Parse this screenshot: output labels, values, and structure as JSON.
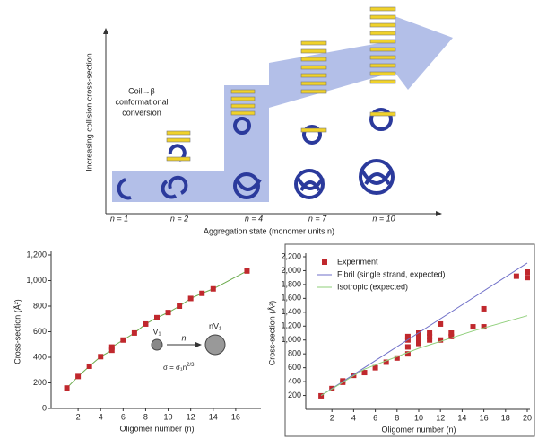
{
  "diagram": {
    "y_label": "Increasing collision cross-section",
    "note_line1": "Coil→β",
    "note_line2": "conformational",
    "note_line3": "conversion",
    "states": [
      "n = 1",
      "n = 2",
      "n = 4",
      "n = 7",
      "n = 10"
    ],
    "x_label": "Aggregation state (monomer units n)"
  },
  "chart_data": [
    {
      "type": "line",
      "x_label": "Oligomer number (n)",
      "y_label": "Cross-section (Å²)",
      "xlim": [
        0,
        18
      ],
      "xticks": [
        2,
        4,
        6,
        8,
        10,
        12,
        14,
        16
      ],
      "ylim": [
        0,
        1200
      ],
      "yticks": [
        0,
        200,
        400,
        600,
        800,
        {
          "value": 1000,
          "label": "1,000"
        },
        {
          "value": 1200,
          "label": "1,200"
        }
      ],
      "series": [
        {
          "color": "#c0282d",
          "line_color": "#6aaa4b",
          "mode": "lines+markers",
          "x": [
            1,
            2,
            3,
            4,
            5,
            5,
            6,
            7,
            8,
            9,
            10,
            11,
            12,
            13,
            14,
            17
          ],
          "values": [
            160,
            250,
            330,
            405,
            455,
            480,
            535,
            590,
            660,
            710,
            750,
            800,
            860,
            900,
            935,
            1075
          ]
        }
      ],
      "annotations": {
        "v1": "V₁",
        "arrow": "n",
        "nv1": "nV₁",
        "formula": "σ = σ₁n",
        "formula_exp": "2/3"
      }
    },
    {
      "type": "scatter",
      "x_label": "Oligomer number (n)",
      "y_label": "Cross-section (Å²)",
      "xlim": [
        0,
        20
      ],
      "xticks": [
        2,
        4,
        6,
        8,
        10,
        12,
        14,
        16,
        18,
        20
      ],
      "ylim": [
        0,
        2200
      ],
      "yticks": [
        200,
        400,
        600,
        800,
        {
          "value": 1000,
          "label": "1,000"
        },
        {
          "value": 1200,
          "label": "1,200"
        },
        {
          "value": 1400,
          "label": "1,400"
        },
        {
          "value": 1600,
          "label": "1,600"
        },
        {
          "value": 1800,
          "label": "1,800"
        },
        {
          "value": 2000,
          "label": "2,000"
        },
        {
          "value": 2200,
          "label": "2,200"
        }
      ],
      "legend": "top-left",
      "frame": true,
      "series": [
        {
          "name": "Experiment",
          "color": "#c0282d",
          "mode": "markers",
          "x": [
            1,
            2,
            3,
            3,
            4,
            5,
            6,
            7,
            8,
            9,
            9,
            9,
            9,
            10,
            10,
            10,
            10,
            11,
            11,
            11,
            12,
            12,
            13,
            13,
            15,
            16,
            16,
            19,
            20,
            20
          ],
          "values": [
            195,
            300,
            390,
            410,
            490,
            530,
            600,
            680,
            740,
            800,
            900,
            1000,
            1050,
            950,
            1000,
            1050,
            1100,
            1000,
            1050,
            1100,
            1230,
            1000,
            1050,
            1100,
            1190,
            1190,
            1450,
            1920,
            1900,
            1980
          ]
        },
        {
          "name": "Fibril (single strand, expected)",
          "color": "#6f6fc8",
          "mode": "line",
          "x": [
            1,
            20
          ],
          "values": [
            200,
            2110
          ]
        },
        {
          "name": "Isotropic (expected)",
          "color": "#8fcf7a",
          "mode": "line",
          "x": [
            1,
            5,
            10,
            15,
            20
          ],
          "values": [
            200,
            580,
            880,
            1130,
            1350
          ]
        }
      ]
    }
  ]
}
